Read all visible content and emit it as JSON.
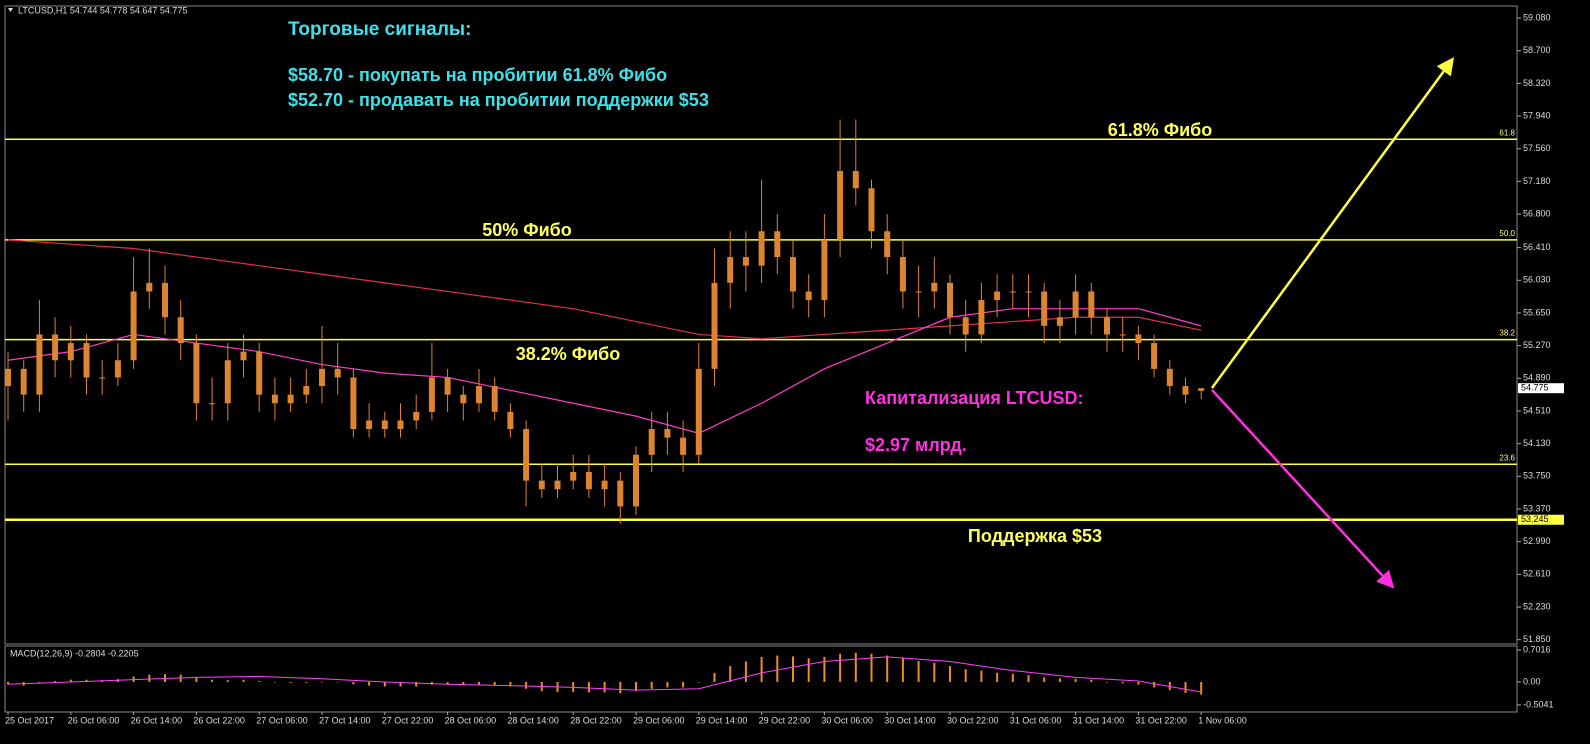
{
  "header": "LTCUSD,H1  54.744 54.778 54.647 54.775",
  "chart_data": {
    "type": "candlestick",
    "categories": [
      "25 Oct 2017",
      null,
      null,
      null,
      "26 Oct 06:00",
      null,
      null,
      null,
      "26 Oct 14:00",
      null,
      null,
      null,
      "26 Oct 22:00",
      null,
      null,
      null,
      "27 Oct 06:00",
      null,
      null,
      null,
      "27 Oct 14:00",
      null,
      null,
      null,
      "27 Oct 22:00",
      null,
      null,
      null,
      "28 Oct 06:00",
      null,
      null,
      null,
      "28 Oct 14:00",
      null,
      null,
      null,
      "28 Oct 22:00",
      null,
      null,
      null,
      "29 Oct 06:00",
      null,
      null,
      null,
      "29 Oct 14:00",
      null,
      null,
      null,
      "29 Oct 22:00",
      null,
      null,
      null,
      "30 Oct 06:00",
      null,
      null,
      null,
      "30 Oct 14:00",
      null,
      null,
      null,
      "30 Oct 22:00",
      null,
      null,
      null,
      "31 Oct 06:00",
      null,
      null,
      null,
      "31 Oct 14:00",
      null,
      null,
      null,
      "31 Oct 22:00",
      null,
      null,
      null,
      "1 Nov 06:00"
    ],
    "open": [
      54.8,
      55.0,
      54.7,
      55.4,
      55.1,
      55.3,
      54.9,
      54.9,
      55.1,
      55.9,
      56.0,
      55.6,
      55.3,
      54.6,
      54.6,
      55.1,
      55.2,
      54.7,
      54.6,
      54.7,
      54.8,
      55.0,
      54.9,
      54.3,
      54.4,
      54.3,
      54.4,
      54.5,
      54.9,
      54.7,
      54.6,
      54.8,
      54.5,
      54.3,
      53.7,
      53.6,
      53.7,
      53.8,
      53.6,
      53.7,
      53.4,
      54.0,
      54.3,
      54.2,
      54.0,
      55.0,
      56.0,
      56.3,
      56.2,
      56.6,
      56.3,
      55.9,
      55.8,
      56.5,
      57.3,
      57.1,
      56.6,
      56.3,
      55.9,
      55.9,
      56.0,
      55.6,
      55.4,
      55.8,
      55.9,
      55.9,
      55.9,
      55.5,
      55.6,
      55.9,
      55.6,
      55.4,
      55.4,
      55.3,
      55.0,
      54.8,
      54.744
    ],
    "high": [
      55.2,
      55.1,
      55.8,
      55.6,
      55.5,
      55.4,
      55.1,
      55.3,
      56.3,
      56.4,
      56.2,
      55.8,
      55.4,
      54.9,
      55.3,
      55.4,
      55.3,
      54.9,
      54.9,
      55.0,
      55.5,
      55.3,
      55.0,
      54.6,
      54.5,
      54.6,
      54.7,
      55.3,
      55.0,
      54.8,
      55.0,
      54.9,
      54.6,
      54.4,
      53.9,
      53.9,
      54.0,
      54.0,
      53.9,
      53.8,
      54.1,
      54.5,
      54.5,
      54.4,
      55.3,
      56.4,
      56.6,
      56.6,
      57.2,
      56.8,
      56.5,
      56.1,
      56.8,
      57.9,
      57.9,
      57.2,
      56.8,
      56.5,
      56.2,
      56.3,
      56.1,
      55.8,
      56.0,
      56.1,
      56.1,
      56.1,
      56.0,
      55.8,
      56.1,
      56.0,
      55.7,
      55.6,
      55.5,
      55.4,
      55.1,
      54.9,
      54.778
    ],
    "low": [
      54.4,
      54.5,
      54.5,
      54.9,
      54.9,
      54.7,
      54.7,
      54.8,
      55.0,
      55.7,
      55.4,
      55.1,
      54.4,
      54.4,
      54.4,
      54.9,
      54.5,
      54.4,
      54.5,
      54.6,
      54.6,
      54.7,
      54.2,
      54.2,
      54.2,
      54.2,
      54.3,
      54.4,
      54.5,
      54.4,
      54.5,
      54.4,
      54.2,
      53.4,
      53.5,
      53.5,
      53.6,
      53.5,
      53.4,
      53.2,
      53.3,
      53.8,
      54.0,
      53.8,
      53.9,
      54.8,
      55.7,
      55.9,
      56.0,
      56.1,
      55.7,
      55.6,
      55.6,
      56.3,
      56.9,
      56.4,
      56.1,
      55.7,
      55.6,
      55.7,
      55.4,
      55.2,
      55.3,
      55.6,
      55.7,
      55.6,
      55.3,
      55.3,
      55.4,
      55.4,
      55.2,
      55.2,
      55.1,
      54.9,
      54.7,
      54.6,
      54.647
    ],
    "close": [
      55.0,
      54.7,
      55.4,
      55.1,
      55.3,
      54.9,
      54.9,
      55.1,
      55.9,
      56.0,
      55.6,
      55.3,
      54.6,
      54.6,
      55.1,
      55.2,
      54.7,
      54.6,
      54.7,
      54.8,
      55.0,
      54.9,
      54.3,
      54.4,
      54.3,
      54.4,
      54.5,
      54.9,
      54.7,
      54.6,
      54.8,
      54.5,
      54.3,
      53.7,
      53.6,
      53.7,
      53.8,
      53.6,
      53.7,
      53.4,
      54.0,
      54.3,
      54.2,
      54.0,
      55.0,
      56.0,
      56.3,
      56.2,
      56.6,
      56.3,
      55.9,
      55.8,
      56.5,
      57.3,
      57.1,
      56.6,
      56.3,
      55.9,
      55.9,
      56.0,
      55.6,
      55.4,
      55.8,
      55.9,
      55.9,
      55.9,
      55.5,
      55.6,
      55.9,
      55.6,
      55.4,
      55.4,
      55.3,
      55.0,
      54.8,
      54.7,
      54.775
    ],
    "color": "#dd8430",
    "ylim": [
      51.8,
      59.22
    ],
    "yticks": [
      {
        "value": 59.08,
        "label": "59.080"
      },
      {
        "value": 58.7,
        "label": "58.700"
      },
      {
        "value": 58.32,
        "label": "58.320"
      },
      {
        "value": 57.94,
        "label": "57.940"
      },
      {
        "value": 57.56,
        "label": "57.560"
      },
      {
        "value": 57.18,
        "label": "57.180"
      },
      {
        "value": 56.8,
        "label": "56.800"
      },
      {
        "value": 56.41,
        "label": "56.410"
      },
      {
        "value": 56.03,
        "label": "56.030"
      },
      {
        "value": 55.65,
        "label": "55.650"
      },
      {
        "value": 55.27,
        "label": "55.270"
      },
      {
        "value": 54.89,
        "label": "54.890"
      },
      {
        "value": 54.51,
        "label": "54.510"
      },
      {
        "value": 54.13,
        "label": "54.130"
      },
      {
        "value": 53.75,
        "label": "53.750"
      },
      {
        "value": 53.37,
        "label": "53.370"
      },
      {
        "value": 52.99,
        "label": "52.990"
      },
      {
        "value": 52.61,
        "label": "52.610"
      },
      {
        "value": 52.23,
        "label": "52.230"
      },
      {
        "value": 51.85,
        "label": "51.850"
      }
    ],
    "moving_averages": [
      {
        "color": "#e0304a",
        "x": [
          0,
          4,
          8,
          12,
          16,
          20,
          24,
          28,
          32,
          36,
          40,
          44,
          48,
          52,
          56,
          60,
          64,
          68,
          72,
          76
        ],
        "values": [
          56.5,
          56.45,
          56.4,
          56.3,
          56.2,
          56.1,
          56.0,
          55.9,
          55.8,
          55.7,
          55.55,
          55.4,
          55.35,
          55.4,
          55.45,
          55.5,
          55.55,
          55.6,
          55.6,
          55.45
        ]
      },
      {
        "color": "#ff3cc8",
        "x": [
          0,
          4,
          8,
          12,
          16,
          20,
          24,
          28,
          32,
          36,
          40,
          44,
          48,
          52,
          56,
          60,
          64,
          68,
          72,
          76
        ],
        "values": [
          55.1,
          55.2,
          55.4,
          55.3,
          55.2,
          55.05,
          54.95,
          54.9,
          54.75,
          54.6,
          54.45,
          54.25,
          54.6,
          55.0,
          55.3,
          55.6,
          55.7,
          55.7,
          55.7,
          55.5
        ]
      }
    ],
    "levels": [
      {
        "label": "61.8",
        "value": 57.67
      },
      {
        "label": "50.0",
        "value": 56.5
      },
      {
        "label": "38.2",
        "value": 55.34
      },
      {
        "label": "23.6",
        "value": 53.89
      }
    ],
    "level_color": "#ffff40",
    "support": 53.245,
    "last_price": 54.775,
    "annotations": [
      {
        "text": "Торговые сигналы:",
        "color": "#40e0e8"
      },
      {
        "text": "$58.70 - покупать на пробитии 61.8% Фибо",
        "color": "#40e0e8"
      },
      {
        "text": "$52.70 - продавать на пробитии поддержки $53",
        "color": "#40e0e8"
      },
      {
        "text": "61.8% Фибо",
        "color": "#ffff60"
      },
      {
        "text": "50% Фибо",
        "color": "#ffff60"
      },
      {
        "text": "38.2% Фибо",
        "color": "#ffff60"
      },
      {
        "text": "Поддержка $53",
        "color": "#ffff60"
      },
      {
        "text": "Капитализация LTCUSD:",
        "color": "#ff30e0"
      },
      {
        "text": "$2.97 млрд.",
        "color": "#ff30e0"
      }
    ],
    "macd": {
      "title": "MACD(12,26,9) -0.2804 -0.2205",
      "histogram": [
        -0.05,
        -0.08,
        0.0,
        0.02,
        0.05,
        0.05,
        0.04,
        0.06,
        0.12,
        0.16,
        0.17,
        0.16,
        0.1,
        0.05,
        0.04,
        0.05,
        0.02,
        0.0,
        -0.02,
        -0.02,
        0.0,
        0.0,
        -0.05,
        -0.08,
        -0.1,
        -0.1,
        -0.1,
        -0.06,
        -0.06,
        -0.07,
        -0.06,
        -0.08,
        -0.1,
        -0.15,
        -0.2,
        -0.22,
        -0.22,
        -0.23,
        -0.23,
        -0.25,
        -0.2,
        -0.15,
        -0.12,
        -0.12,
        0.0,
        0.2,
        0.35,
        0.45,
        0.55,
        0.58,
        0.56,
        0.52,
        0.55,
        0.62,
        0.64,
        0.62,
        0.58,
        0.52,
        0.46,
        0.42,
        0.35,
        0.28,
        0.25,
        0.2,
        0.18,
        0.15,
        0.1,
        0.08,
        0.07,
        0.05,
        0.0,
        -0.03,
        -0.06,
        -0.12,
        -0.18,
        -0.24,
        -0.2804
      ],
      "color": "#f08c20",
      "signal": {
        "color": "#ff40ff",
        "x": [
          0,
          4,
          8,
          12,
          16,
          20,
          24,
          28,
          32,
          36,
          40,
          44,
          48,
          52,
          56,
          60,
          64,
          68,
          72,
          76
        ],
        "values": [
          -0.05,
          0.0,
          0.05,
          0.1,
          0.12,
          0.07,
          0.0,
          -0.05,
          -0.08,
          -0.12,
          -0.18,
          -0.15,
          0.2,
          0.45,
          0.55,
          0.45,
          0.25,
          0.1,
          0.02,
          -0.2205
        ]
      },
      "ylim": [
        -0.66,
        0.79
      ],
      "yticks": [
        0.7016,
        {
          "value": 0,
          "label": "0.00"
        },
        -0.5041
      ]
    }
  }
}
